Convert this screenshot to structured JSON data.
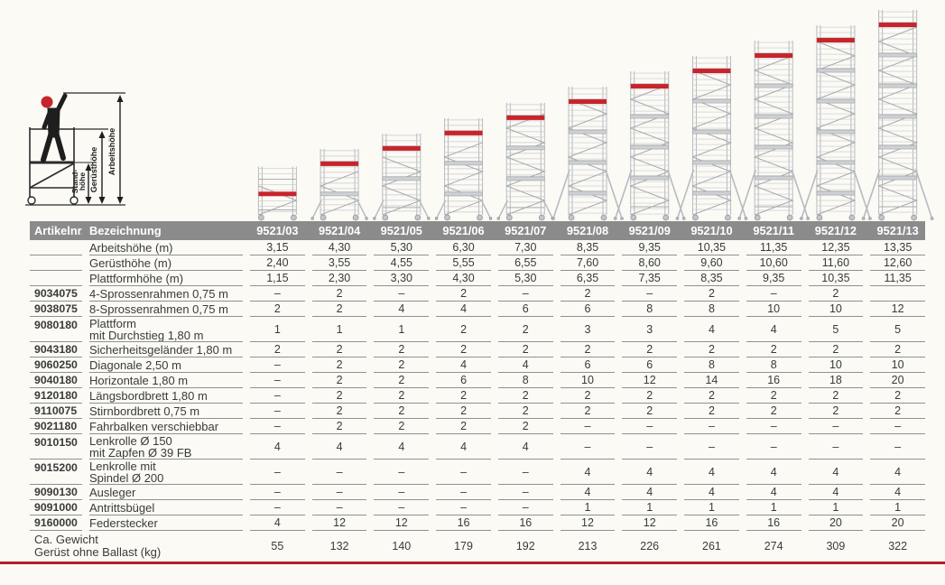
{
  "page": {
    "bg": "#fbfaf5",
    "accent_red": "#b01f28",
    "header_bg": "#8b8b8b",
    "text": "#3a3a3a",
    "rule": "#909090"
  },
  "legend": {
    "stand_label_1": "Stand-",
    "stand_label_2": "höhe",
    "geruest_label": "Gerüsthöhe",
    "arbeits_label": "Arbeitshöhe"
  },
  "table": {
    "header": {
      "artikel": "Artikelnr.",
      "bezeichnung": "Bezeichnung",
      "models": [
        "9521/03",
        "9521/04",
        "9521/05",
        "9521/06",
        "9521/07",
        "9521/08",
        "9521/09",
        "9521/10",
        "9521/11",
        "9521/12",
        "9521/13"
      ]
    },
    "rows": [
      {
        "art": "",
        "name": [
          "Arbeitshöhe (m)"
        ],
        "values": [
          "3,15",
          "4,30",
          "5,30",
          "6,30",
          "7,30",
          "8,35",
          "9,35",
          "10,35",
          "11,35",
          "12,35",
          "13,35"
        ]
      },
      {
        "art": "",
        "name": [
          "Gerüsthöhe (m)"
        ],
        "values": [
          "2,40",
          "3,55",
          "4,55",
          "5,55",
          "6,55",
          "7,60",
          "8,60",
          "9,60",
          "10,60",
          "11,60",
          "12,60"
        ]
      },
      {
        "art": "",
        "name": [
          "Plattformhöhe (m)"
        ],
        "values": [
          "1,15",
          "2,30",
          "3,30",
          "4,30",
          "5,30",
          "6,35",
          "7,35",
          "8,35",
          "9,35",
          "10,35",
          "11,35"
        ]
      },
      {
        "art": "9034075",
        "name": [
          "4-Sprossenrahmen 0,75 m"
        ],
        "values": [
          "–",
          "2",
          "–",
          "2",
          "–",
          "2",
          "–",
          "2",
          "–",
          "2",
          ""
        ]
      },
      {
        "art": "9038075",
        "name": [
          "8-Sprossenrahmen 0,75 m"
        ],
        "values": [
          "2",
          "2",
          "4",
          "4",
          "6",
          "6",
          "8",
          "8",
          "10",
          "10",
          "12"
        ]
      },
      {
        "art": "9080180",
        "name": [
          "Plattform",
          "mit Durchstieg 1,80 m"
        ],
        "values": [
          "1",
          "1",
          "1",
          "2",
          "2",
          "3",
          "3",
          "4",
          "4",
          "5",
          "5"
        ]
      },
      {
        "art": "9043180",
        "name": [
          "Sicherheitsgeländer 1,80 m"
        ],
        "values": [
          "2",
          "2",
          "2",
          "2",
          "2",
          "2",
          "2",
          "2",
          "2",
          "2",
          "2"
        ]
      },
      {
        "art": "9060250",
        "name": [
          "Diagonale 2,50 m"
        ],
        "values": [
          "–",
          "2",
          "2",
          "4",
          "4",
          "6",
          "6",
          "8",
          "8",
          "10",
          "10"
        ]
      },
      {
        "art": "9040180",
        "name": [
          "Horizontale 1,80 m"
        ],
        "values": [
          "–",
          "2",
          "2",
          "6",
          "8",
          "10",
          "12",
          "14",
          "16",
          "18",
          "20"
        ]
      },
      {
        "art": "9120180",
        "name": [
          "Längsbordbrett 1,80 m"
        ],
        "values": [
          "–",
          "2",
          "2",
          "2",
          "2",
          "2",
          "2",
          "2",
          "2",
          "2",
          "2"
        ]
      },
      {
        "art": "9110075",
        "name": [
          "Stirnbordbrett 0,75 m"
        ],
        "values": [
          "–",
          "2",
          "2",
          "2",
          "2",
          "2",
          "2",
          "2",
          "2",
          "2",
          "2"
        ]
      },
      {
        "art": "9021180",
        "name": [
          "Fahrbalken verschiebbar"
        ],
        "values": [
          "–",
          "2",
          "2",
          "2",
          "2",
          "–",
          "–",
          "–",
          "–",
          "–",
          "–"
        ]
      },
      {
        "art": "9010150",
        "name": [
          "Lenkrolle Ø 150",
          "mit Zapfen Ø 39 FB"
        ],
        "values": [
          "4",
          "4",
          "4",
          "4",
          "4",
          "–",
          "–",
          "–",
          "–",
          "–",
          "–"
        ]
      },
      {
        "art": "9015200",
        "name": [
          "Lenkrolle mit",
          "Spindel Ø 200"
        ],
        "values": [
          "–",
          "–",
          "–",
          "–",
          "–",
          "4",
          "4",
          "4",
          "4",
          "4",
          "4"
        ]
      },
      {
        "art": "9090130",
        "name": [
          "Ausleger"
        ],
        "values": [
          "–",
          "–",
          "–",
          "–",
          "–",
          "4",
          "4",
          "4",
          "4",
          "4",
          "4"
        ]
      },
      {
        "art": "9091000",
        "name": [
          "Antrittsbügel"
        ],
        "values": [
          "–",
          "–",
          "–",
          "–",
          "–",
          "1",
          "1",
          "1",
          "1",
          "1",
          "1"
        ]
      },
      {
        "art": "9160000",
        "name": [
          "Federstecker"
        ],
        "values": [
          "4",
          "12",
          "12",
          "16",
          "16",
          "12",
          "12",
          "16",
          "16",
          "20",
          "20"
        ]
      }
    ],
    "footer": {
      "label": [
        "Ca. Gewicht",
        "Gerüst ohne Ballast (kg)"
      ],
      "values": [
        "55",
        "132",
        "140",
        "179",
        "192",
        "213",
        "226",
        "261",
        "274",
        "309",
        "322"
      ]
    }
  },
  "illustration": {
    "tower_work_heights_m": [
      3.15,
      4.3,
      5.3,
      6.3,
      7.3,
      8.35,
      9.35,
      10.35,
      11.35,
      12.35,
      13.35
    ],
    "tower_colors": {
      "frame": "#b7bac0",
      "lattice": "#c6c9cd",
      "joint": "#aaadb1",
      "platform_red": "#c8242b",
      "platform_gray": "#ced1d4",
      "platform_edge": "#9fa2a6",
      "wheel_fill": "#c3c6c9",
      "wheel_stroke": "#94979b"
    }
  }
}
